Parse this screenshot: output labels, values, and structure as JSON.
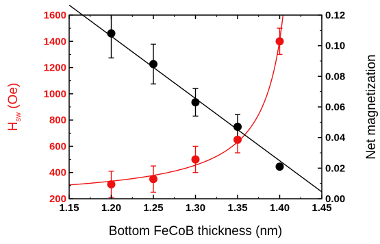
{
  "chart_data": {
    "type": "scatter",
    "xlabel": "Bottom FeCoB thickness (nm)",
    "ylabel_left": {
      "main": "H",
      "sub": "sw",
      "rest": " (Oe)"
    },
    "ylabel_right": "Net magnetization",
    "xlim": [
      1.15,
      1.45
    ],
    "ylim_left": [
      200,
      1600
    ],
    "ylim_right": [
      0.0,
      0.12
    ],
    "x_ticks": [
      "1.15",
      "1.20",
      "1.25",
      "1.30",
      "1.35",
      "1.40",
      "1.45"
    ],
    "y_left_ticks": [
      "200",
      "400",
      "600",
      "800",
      "1000",
      "1200",
      "1400",
      "1600"
    ],
    "y_right_ticks": [
      "0.00",
      "0.02",
      "0.04",
      "0.06",
      "0.08",
      "0.10",
      "0.12"
    ],
    "colors": {
      "hsw": "#ee1111",
      "net": "#000000"
    },
    "series": [
      {
        "axis": "left",
        "color": "#ee1111",
        "x": [
          1.2,
          1.25,
          1.3,
          1.35,
          1.4
        ],
        "y": [
          310,
          350,
          500,
          650,
          1400
        ],
        "err": [
          100,
          100,
          100,
          100,
          100
        ],
        "fit": "hyperbolic"
      },
      {
        "axis": "right",
        "color": "#000000",
        "x": [
          1.2,
          1.25,
          1.3,
          1.35,
          1.4
        ],
        "y": [
          0.108,
          0.088,
          0.063,
          0.047,
          0.021
        ],
        "err": [
          0.016,
          0.013,
          0.009,
          0.008,
          0.0015
        ],
        "fit": "linear",
        "fit_line": {
          "x": [
            1.15,
            1.45
          ],
          "y": [
            0.1265,
            0.0045
          ]
        }
      }
    ],
    "grid": false
  }
}
